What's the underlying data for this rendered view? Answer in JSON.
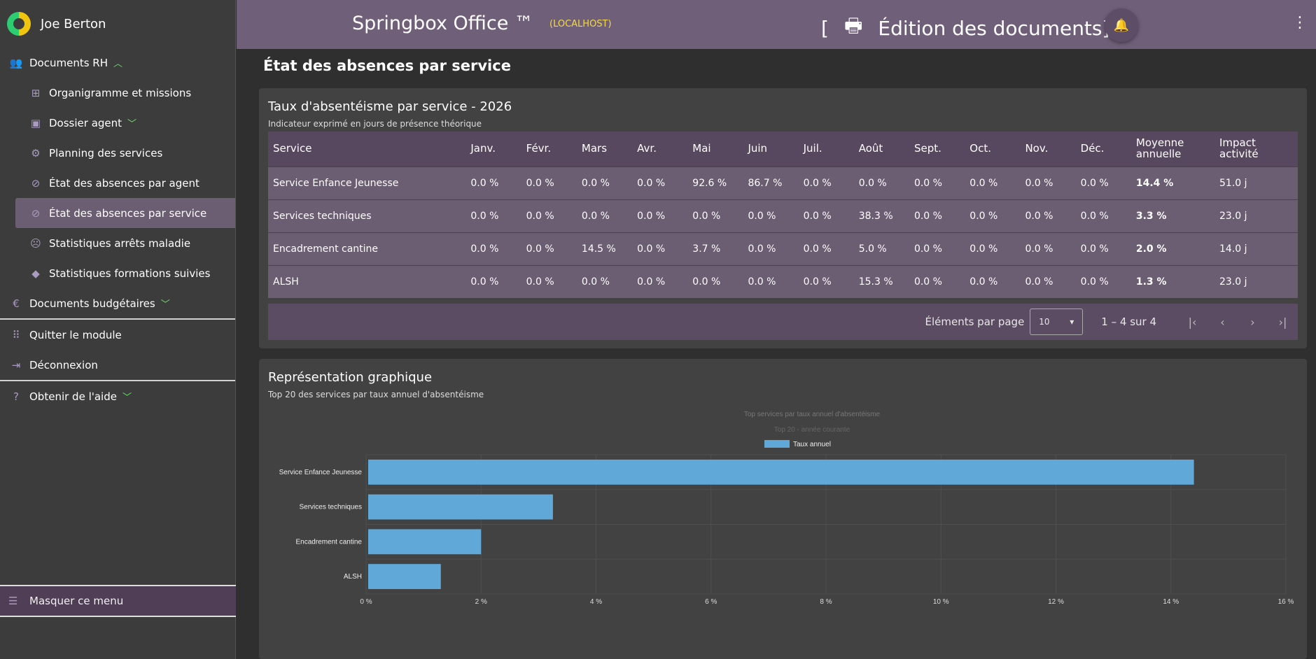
{
  "user": {
    "name": "Joe Berton"
  },
  "sidebar": {
    "section_rh": "Documents RH",
    "items": [
      {
        "label": "Organigramme et missions",
        "icon": "sitemap-icon"
      },
      {
        "label": "Dossier agent",
        "icon": "badge-icon"
      },
      {
        "label": "Planning des services",
        "icon": "gears-icon"
      },
      {
        "label": "État des absences par agent",
        "icon": "user-off-icon"
      },
      {
        "label": "État des absences par service",
        "icon": "users-off-icon"
      },
      {
        "label": "Statistiques arrêts maladie",
        "icon": "sick-icon"
      },
      {
        "label": "Statistiques formations suivies",
        "icon": "graduation-icon"
      }
    ],
    "section_budget": "Documents budgétaires",
    "quit": "Quitter le module",
    "logout": "Déconnexion",
    "help": "Obtenir de l'aide",
    "hide_menu": "Masquer ce menu"
  },
  "topbar": {
    "app_title": "Springbox Office ™",
    "host": "(LOCALHOST)",
    "bracket_open": "[",
    "doc_title": "Édition des documents]"
  },
  "page": {
    "title": "État des absences par service"
  },
  "table_card": {
    "title": "Taux d'absentéisme par service - 2026",
    "subtitle": "Indicateur exprimé en jours de présence théorique",
    "headers": [
      "Service",
      "Janv.",
      "Févr.",
      "Mars",
      "Avr.",
      "Mai",
      "Juin",
      "Juil.",
      "Août",
      "Sept.",
      "Oct.",
      "Nov.",
      "Déc.",
      "Moyenne annuelle",
      "Impact activité"
    ],
    "rows": [
      [
        "Service Enfance Jeunesse",
        "0.0 %",
        "0.0 %",
        "0.0 %",
        "0.0 %",
        "92.6 %",
        "86.7 %",
        "0.0 %",
        "0.0 %",
        "0.0 %",
        "0.0 %",
        "0.0 %",
        "0.0 %",
        "14.4 %",
        "51.0 j"
      ],
      [
        "Services techniques",
        "0.0 %",
        "0.0 %",
        "0.0 %",
        "0.0 %",
        "0.0 %",
        "0.0 %",
        "0.0 %",
        "38.3 %",
        "0.0 %",
        "0.0 %",
        "0.0 %",
        "0.0 %",
        "3.3 %",
        "23.0 j"
      ],
      [
        "Encadrement cantine",
        "0.0 %",
        "0.0 %",
        "14.5 %",
        "0.0 %",
        "3.7 %",
        "0.0 %",
        "0.0 %",
        "5.0 %",
        "0.0 %",
        "0.0 %",
        "0.0 %",
        "0.0 %",
        "2.0 %",
        "14.0 j"
      ],
      [
        "ALSH",
        "0.0 %",
        "0.0 %",
        "0.0 %",
        "0.0 %",
        "0.0 %",
        "0.0 %",
        "0.0 %",
        "15.3 %",
        "0.0 %",
        "0.0 %",
        "0.0 %",
        "0.0 %",
        "1.3 %",
        "23.0 j"
      ]
    ],
    "paginator": {
      "per_page_label": "Éléments par page",
      "per_page_value": "10",
      "range": "1 – 4 sur 4"
    }
  },
  "chart_card": {
    "title": "Représentation graphique",
    "subtitle": "Top 20 des services par taux annuel d'absentéisme"
  },
  "chart_data": {
    "type": "bar",
    "orientation": "horizontal",
    "title": "Top services par taux annuel d'absentéisme",
    "subtitle": "Top 20 - année courante",
    "legend": "top-center",
    "categories": [
      "Service Enfance Jeunesse",
      "Services techniques",
      "Encadrement cantine",
      "ALSH"
    ],
    "series": [
      {
        "name": "Taux annuel",
        "values": [
          14.4,
          3.25,
          2.0,
          1.3
        ]
      }
    ],
    "xlim": [
      0,
      16
    ],
    "xticks": [
      "0 %",
      "2 %",
      "4 %",
      "6 %",
      "8 %",
      "10 %",
      "12 %",
      "14 %",
      "16 %"
    ],
    "grid": true,
    "color": "#5fa8d8"
  }
}
